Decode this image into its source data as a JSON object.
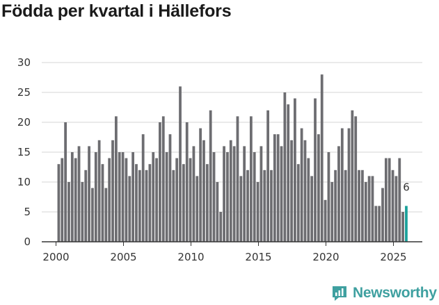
{
  "chart_data": {
    "type": "bar",
    "title": "Födda per kvartal i Hällefors",
    "xlabel": "",
    "ylabel": "",
    "ylim": [
      0,
      30
    ],
    "yticks": [
      0,
      5,
      10,
      15,
      20,
      25,
      30
    ],
    "xticks": [
      "2000",
      "2005",
      "2010",
      "2015",
      "2020",
      "2025"
    ],
    "grid": true,
    "start_year": 2000,
    "values": [
      13,
      14,
      20,
      10,
      15,
      14,
      16,
      10,
      12,
      16,
      9,
      15,
      17,
      13,
      9,
      14,
      17,
      21,
      15,
      15,
      14,
      11,
      15,
      13,
      12,
      18,
      12,
      13,
      15,
      14,
      20,
      21,
      15,
      18,
      12,
      14,
      26,
      13,
      20,
      14,
      16,
      11,
      19,
      17,
      13,
      22,
      15,
      10,
      5,
      16,
      15,
      17,
      16,
      21,
      11,
      16,
      12,
      21,
      15,
      10,
      16,
      12,
      22,
      12,
      18,
      18,
      16,
      25,
      23,
      17,
      24,
      13,
      19,
      17,
      14,
      11,
      24,
      18,
      28,
      7,
      15,
      10,
      12,
      16,
      19,
      12,
      19,
      22,
      21,
      12,
      12,
      10,
      11,
      11,
      6,
      6,
      9,
      14,
      14,
      12,
      11,
      14,
      5,
      6
    ],
    "highlight_last": true,
    "last_label": "6",
    "colors": {
      "bar": "#6d6d71",
      "highlight": "#1aa19a",
      "grid": "#d4d4d4",
      "axis": "#333333"
    }
  },
  "brand": {
    "name": "Newsworthy",
    "icon": "newsworthy-logo-icon",
    "color": "#3fa0a0"
  }
}
